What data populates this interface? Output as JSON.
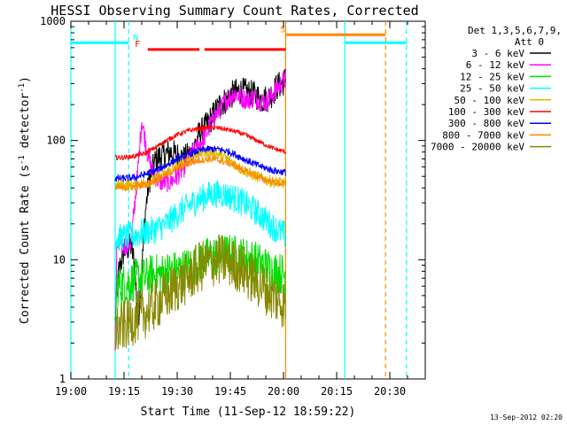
{
  "chart_data": {
    "type": "line",
    "title": "HESSI Observing Summary Count Rates, Corrected",
    "xlabel": "Start Time (11-Sep-12 18:59:22)",
    "ylabel_parts": {
      "pre": "Corrected Count Rate (s",
      "exp1": "-1",
      "mid": " detector",
      "exp2": "-1",
      "post": ")"
    },
    "yscale": "log",
    "xlim": [
      0,
      100
    ],
    "ylim": [
      1,
      1000
    ],
    "x_ticks": [
      {
        "t": 0,
        "label": "19:00"
      },
      {
        "t": 15,
        "label": "19:15"
      },
      {
        "t": 30,
        "label": "19:30"
      },
      {
        "t": 45,
        "label": "19:45"
      },
      {
        "t": 60,
        "label": "20:00"
      },
      {
        "t": 75,
        "label": "20:15"
      },
      {
        "t": 90,
        "label": "20:30"
      }
    ],
    "y_ticks": [
      {
        "v": 1,
        "label": "1"
      },
      {
        "v": 10,
        "label": "10"
      },
      {
        "v": 100,
        "label": "100"
      },
      {
        "v": 1000,
        "label": "1000"
      }
    ],
    "legend_header": [
      "Det 1,3,5,6,7,9,",
      "Att 0"
    ],
    "legend_position": "right",
    "timestamp": "13-Sep-2012 02:20",
    "series": [
      {
        "name": "3 - 6 keV",
        "color": "#000000",
        "noise": 0.12,
        "points": [
          [
            12.5,
            3
          ],
          [
            13.5,
            8
          ],
          [
            15,
            12
          ],
          [
            17,
            13
          ],
          [
            18,
            9
          ],
          [
            19,
            3
          ],
          [
            20,
            8
          ],
          [
            21,
            25
          ],
          [
            22,
            45
          ],
          [
            24,
            70
          ],
          [
            26,
            75
          ],
          [
            28,
            80
          ],
          [
            30,
            75
          ],
          [
            32,
            70
          ],
          [
            34,
            78
          ],
          [
            36,
            110
          ],
          [
            38,
            130
          ],
          [
            40,
            160
          ],
          [
            42,
            200
          ],
          [
            44,
            220
          ],
          [
            46,
            250
          ],
          [
            48,
            260
          ],
          [
            50,
            250
          ],
          [
            52,
            240
          ],
          [
            54,
            220
          ],
          [
            56,
            230
          ],
          [
            58,
            280
          ],
          [
            60,
            310
          ],
          [
            60.6,
            330
          ]
        ]
      },
      {
        "name": "6 - 12 keV",
        "color": "#ff00ff",
        "noise": 0.09,
        "points": [
          [
            12.5,
            2
          ],
          [
            13,
            13
          ],
          [
            15,
            13
          ],
          [
            17,
            14
          ],
          [
            19,
            60
          ],
          [
            20,
            150
          ],
          [
            21,
            100
          ],
          [
            22,
            70
          ],
          [
            23,
            55
          ],
          [
            25,
            45
          ],
          [
            28,
            45
          ],
          [
            30,
            50
          ],
          [
            32,
            60
          ],
          [
            34,
            75
          ],
          [
            36,
            90
          ],
          [
            38,
            110
          ],
          [
            40,
            150
          ],
          [
            42,
            180
          ],
          [
            44,
            220
          ],
          [
            46,
            250
          ],
          [
            48,
            230
          ],
          [
            50,
            220
          ],
          [
            52,
            230
          ],
          [
            54,
            210
          ],
          [
            56,
            220
          ],
          [
            58,
            270
          ],
          [
            60.6,
            330
          ]
        ]
      },
      {
        "name": "12 - 25 keV",
        "color": "#00dd00",
        "noise": 0.18,
        "points": [
          [
            12.5,
            2.5
          ],
          [
            13,
            6
          ],
          [
            17,
            6.5
          ],
          [
            19,
            7
          ],
          [
            21,
            7
          ],
          [
            23,
            7.5
          ],
          [
            25,
            7.5
          ],
          [
            28,
            8
          ],
          [
            30,
            8
          ],
          [
            33,
            8.5
          ],
          [
            36,
            9.5
          ],
          [
            39,
            10.5
          ],
          [
            42,
            11
          ],
          [
            45,
            11
          ],
          [
            48,
            10.5
          ],
          [
            51,
            10
          ],
          [
            54,
            9
          ],
          [
            57,
            8
          ],
          [
            60.6,
            7.5
          ]
        ]
      },
      {
        "name": "25 - 50 keV",
        "color": "#00ffff",
        "noise": 0.12,
        "points": [
          [
            12.5,
            15
          ],
          [
            15,
            15.5
          ],
          [
            18,
            16
          ],
          [
            21,
            17
          ],
          [
            24,
            18
          ],
          [
            27,
            20
          ],
          [
            30,
            24
          ],
          [
            33,
            28
          ],
          [
            36,
            32
          ],
          [
            39,
            35
          ],
          [
            42,
            36
          ],
          [
            45,
            34
          ],
          [
            48,
            31
          ],
          [
            51,
            27
          ],
          [
            54,
            23
          ],
          [
            57,
            19
          ],
          [
            60.6,
            16
          ]
        ]
      },
      {
        "name": "50 - 100 keV",
        "color": "#ddbb00",
        "noise": 0.05,
        "points": [
          [
            12.5,
            42
          ],
          [
            15,
            42
          ],
          [
            18,
            43
          ],
          [
            21,
            44
          ],
          [
            24,
            48
          ],
          [
            27,
            54
          ],
          [
            30,
            62
          ],
          [
            33,
            70
          ],
          [
            36,
            78
          ],
          [
            39,
            80
          ],
          [
            42,
            76
          ],
          [
            45,
            68
          ],
          [
            48,
            58
          ],
          [
            51,
            52
          ],
          [
            54,
            48
          ],
          [
            57,
            45
          ],
          [
            60.6,
            44
          ]
        ]
      },
      {
        "name": "100 - 300 keV",
        "color": "#ff0000",
        "noise": 0.02,
        "points": [
          [
            12.5,
            72
          ],
          [
            15,
            72
          ],
          [
            18,
            74
          ],
          [
            21,
            78
          ],
          [
            24,
            88
          ],
          [
            27,
            100
          ],
          [
            30,
            112
          ],
          [
            33,
            120
          ],
          [
            36,
            126
          ],
          [
            39,
            128
          ],
          [
            42,
            127
          ],
          [
            45,
            122
          ],
          [
            48,
            115
          ],
          [
            51,
            105
          ],
          [
            54,
            95
          ],
          [
            57,
            86
          ],
          [
            60.6,
            80
          ]
        ]
      },
      {
        "name": "300 - 800 keV",
        "color": "#0000ff",
        "noise": 0.03,
        "points": [
          [
            12.5,
            48
          ],
          [
            15,
            48
          ],
          [
            18,
            49
          ],
          [
            21,
            52
          ],
          [
            24,
            56
          ],
          [
            27,
            62
          ],
          [
            30,
            70
          ],
          [
            33,
            76
          ],
          [
            36,
            82
          ],
          [
            39,
            85
          ],
          [
            42,
            84
          ],
          [
            45,
            80
          ],
          [
            48,
            72
          ],
          [
            51,
            65
          ],
          [
            54,
            60
          ],
          [
            57,
            56
          ],
          [
            60.6,
            54
          ]
        ]
      },
      {
        "name": "800 - 7000 keV",
        "color": "#ff8800",
        "noise": 0.03,
        "points": [
          [
            12.5,
            40
          ],
          [
            15,
            40
          ],
          [
            18,
            41
          ],
          [
            21,
            43
          ],
          [
            24,
            46
          ],
          [
            27,
            52
          ],
          [
            30,
            58
          ],
          [
            33,
            64
          ],
          [
            36,
            68
          ],
          [
            39,
            70
          ],
          [
            42,
            68
          ],
          [
            45,
            64
          ],
          [
            48,
            58
          ],
          [
            51,
            52
          ],
          [
            54,
            48
          ],
          [
            57,
            45
          ],
          [
            60.6,
            43
          ]
        ]
      },
      {
        "name": "7000 - 20000 keV",
        "color": "#888800",
        "noise": 0.22,
        "points": [
          [
            12.5,
            2.5
          ],
          [
            15,
            2.8
          ],
          [
            18,
            3.2
          ],
          [
            21,
            3.6
          ],
          [
            24,
            4.2
          ],
          [
            27,
            5
          ],
          [
            30,
            6
          ],
          [
            33,
            7
          ],
          [
            36,
            8.5
          ],
          [
            39,
            9.5
          ],
          [
            42,
            10
          ],
          [
            45,
            9.5
          ],
          [
            48,
            8.5
          ],
          [
            51,
            7
          ],
          [
            54,
            6
          ],
          [
            57,
            5
          ],
          [
            60.6,
            4.2
          ]
        ]
      }
    ],
    "vertical_markers": [
      {
        "t": 0,
        "color": "#00ffff",
        "dashed": false
      },
      {
        "t": 12.5,
        "color": "#00ffff",
        "dashed": false
      },
      {
        "t": 16.3,
        "color": "#00ffff",
        "dashed": true
      },
      {
        "t": 60.6,
        "color": "#ff8800",
        "dashed": false
      },
      {
        "t": 77.3,
        "color": "#00ffff",
        "dashed": false
      },
      {
        "t": 88.8,
        "color": "#ff8800",
        "dashed": true
      },
      {
        "t": 94.7,
        "color": "#00ffff",
        "dashed": true
      }
    ],
    "flag_bars": [
      {
        "color": "#00ffff",
        "y": 660,
        "from": 0,
        "to": 16.3,
        "label": "N",
        "label_t": 18.3
      },
      {
        "color": "#00ffff",
        "y": 660,
        "from": 77.3,
        "to": 94.7
      },
      {
        "color": "#ff0000",
        "y": 580,
        "from": 21.7,
        "to": 36.3,
        "label": "F",
        "label_t": 18.8
      },
      {
        "color": "#ff0000",
        "y": 580,
        "from": 37.7,
        "to": 60.6
      },
      {
        "color": "#ff8800",
        "y": 770,
        "from": 60.6,
        "to": 88.8,
        "label": "S",
        "label_t": 59.8
      }
    ]
  }
}
